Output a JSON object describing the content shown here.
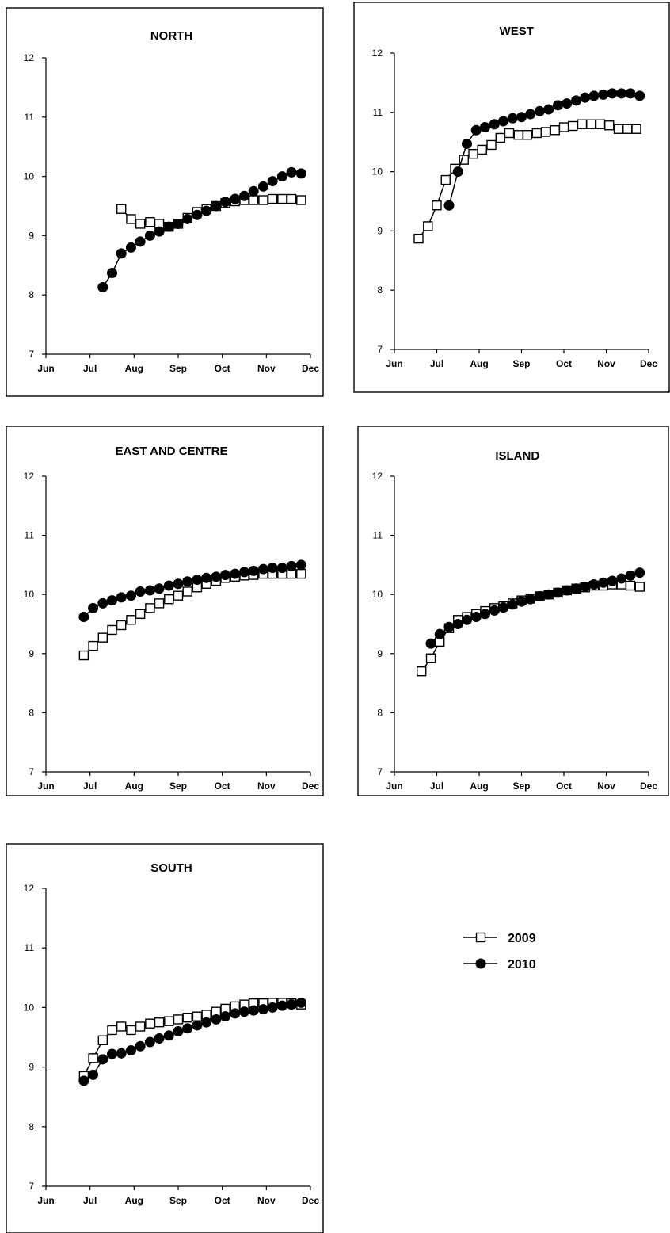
{
  "months": [
    "Jun",
    "Jul",
    "Aug",
    "Sep",
    "Oct",
    "Nov",
    "Dec"
  ],
  "legend": [
    {
      "name": "2009",
      "marker": "open-square"
    },
    {
      "name": "2010",
      "marker": "filled-circle"
    }
  ],
  "chart_data": [
    {
      "type": "line",
      "title": "NORTH",
      "xlabel": "",
      "ylabel": "",
      "xlim": [
        0,
        6
      ],
      "ylim": [
        7,
        12
      ],
      "yticks": [
        7,
        8,
        9,
        10,
        11,
        12
      ],
      "xticks": [
        "Jun",
        "Jul",
        "Aug",
        "Sep",
        "Oct",
        "Nov",
        "Dec"
      ],
      "series": [
        {
          "name": "2009",
          "marker": "open-square",
          "x": [
            1.71,
            1.93,
            2.14,
            2.36,
            2.57,
            2.79,
            3.0,
            3.21,
            3.43,
            3.64,
            3.86,
            4.07,
            4.29,
            4.5,
            4.71,
            4.93,
            5.14,
            5.36,
            5.57,
            5.79
          ],
          "y": [
            9.45,
            9.28,
            9.2,
            9.23,
            9.2,
            9.15,
            9.2,
            9.3,
            9.4,
            9.45,
            9.5,
            9.55,
            9.58,
            9.6,
            9.6,
            9.6,
            9.62,
            9.62,
            9.62,
            9.6
          ]
        },
        {
          "name": "2010",
          "marker": "filled-circle",
          "x": [
            1.29,
            1.5,
            1.71,
            1.93,
            2.14,
            2.36,
            2.57,
            2.79,
            3.0,
            3.21,
            3.43,
            3.64,
            3.86,
            4.07,
            4.29,
            4.5,
            4.71,
            4.93,
            5.14,
            5.36,
            5.57,
            5.79
          ],
          "y": [
            8.13,
            8.37,
            8.7,
            8.8,
            8.9,
            9.0,
            9.07,
            9.15,
            9.2,
            9.28,
            9.35,
            9.42,
            9.5,
            9.57,
            9.62,
            9.67,
            9.75,
            9.83,
            9.92,
            10.0,
            10.07,
            10.05
          ]
        }
      ]
    },
    {
      "type": "line",
      "title": "WEST",
      "xlabel": "",
      "ylabel": "",
      "xlim": [
        0,
        6
      ],
      "ylim": [
        7,
        12
      ],
      "yticks": [
        7,
        8,
        9,
        10,
        11,
        12
      ],
      "xticks": [
        "Jun",
        "Jul",
        "Aug",
        "Sep",
        "Oct",
        "Nov",
        "Dec"
      ],
      "series": [
        {
          "name": "2009",
          "marker": "open-square",
          "x": [
            0.57,
            0.79,
            1.0,
            1.21,
            1.43,
            1.64,
            1.86,
            2.07,
            2.29,
            2.5,
            2.71,
            2.93,
            3.14,
            3.36,
            3.57,
            3.79,
            4.0,
            4.21,
            4.43,
            4.64,
            4.86,
            5.07,
            5.29,
            5.5,
            5.71
          ],
          "y": [
            8.87,
            9.08,
            9.43,
            9.86,
            10.05,
            10.2,
            10.3,
            10.37,
            10.45,
            10.57,
            10.65,
            10.62,
            10.62,
            10.65,
            10.67,
            10.7,
            10.75,
            10.77,
            10.8,
            10.8,
            10.8,
            10.78,
            10.72,
            10.72,
            10.72
          ]
        },
        {
          "name": "2010",
          "marker": "filled-circle",
          "x": [
            1.29,
            1.5,
            1.71,
            1.93,
            2.14,
            2.36,
            2.57,
            2.79,
            3.0,
            3.21,
            3.43,
            3.64,
            3.86,
            4.07,
            4.29,
            4.5,
            4.71,
            4.93,
            5.14,
            5.36,
            5.57,
            5.79
          ],
          "y": [
            9.43,
            10.0,
            10.47,
            10.7,
            10.75,
            10.8,
            10.85,
            10.9,
            10.92,
            10.97,
            11.02,
            11.05,
            11.12,
            11.15,
            11.2,
            11.25,
            11.28,
            11.3,
            11.32,
            11.32,
            11.32,
            11.28
          ]
        }
      ]
    },
    {
      "type": "line",
      "title": "EAST AND CENTRE",
      "xlabel": "",
      "ylabel": "",
      "xlim": [
        0,
        6
      ],
      "ylim": [
        7,
        12
      ],
      "yticks": [
        7,
        8,
        9,
        10,
        11,
        12
      ],
      "xticks": [
        "Jun",
        "Jul",
        "Aug",
        "Sep",
        "Oct",
        "Nov",
        "Dec"
      ],
      "series": [
        {
          "name": "2009",
          "marker": "open-square",
          "x": [
            0.86,
            1.07,
            1.29,
            1.5,
            1.71,
            1.93,
            2.14,
            2.36,
            2.57,
            2.79,
            3.0,
            3.21,
            3.43,
            3.64,
            3.86,
            4.07,
            4.29,
            4.5,
            4.71,
            4.93,
            5.14,
            5.36,
            5.57,
            5.79
          ],
          "y": [
            8.97,
            9.13,
            9.27,
            9.4,
            9.48,
            9.57,
            9.67,
            9.77,
            9.85,
            9.92,
            9.98,
            10.05,
            10.12,
            10.18,
            10.23,
            10.28,
            10.3,
            10.32,
            10.33,
            10.35,
            10.35,
            10.35,
            10.35,
            10.35
          ]
        },
        {
          "name": "2010",
          "marker": "filled-circle",
          "x": [
            0.86,
            1.07,
            1.29,
            1.5,
            1.71,
            1.93,
            2.14,
            2.36,
            2.57,
            2.79,
            3.0,
            3.21,
            3.43,
            3.64,
            3.86,
            4.07,
            4.29,
            4.5,
            4.71,
            4.93,
            5.14,
            5.36,
            5.57,
            5.79
          ],
          "y": [
            9.62,
            9.77,
            9.85,
            9.9,
            9.95,
            9.98,
            10.05,
            10.07,
            10.1,
            10.15,
            10.18,
            10.22,
            10.25,
            10.28,
            10.3,
            10.33,
            10.35,
            10.38,
            10.4,
            10.43,
            10.45,
            10.45,
            10.48,
            10.5
          ]
        }
      ]
    },
    {
      "type": "line",
      "title": "ISLAND",
      "xlabel": "",
      "ylabel": "",
      "xlim": [
        0,
        6
      ],
      "ylim": [
        7,
        12
      ],
      "yticks": [
        7,
        8,
        9,
        10,
        11,
        12
      ],
      "xticks": [
        "Jun",
        "Jul",
        "Aug",
        "Sep",
        "Oct",
        "Nov",
        "Dec"
      ],
      "series": [
        {
          "name": "2009",
          "marker": "open-square",
          "x": [
            0.64,
            0.86,
            1.07,
            1.29,
            1.5,
            1.71,
            1.93,
            2.14,
            2.36,
            2.57,
            2.79,
            3.0,
            3.21,
            3.43,
            3.64,
            3.86,
            4.07,
            4.29,
            4.5,
            4.71,
            4.93,
            5.14,
            5.36,
            5.57,
            5.79
          ],
          "y": [
            8.7,
            8.92,
            9.2,
            9.43,
            9.57,
            9.62,
            9.67,
            9.72,
            9.77,
            9.8,
            9.85,
            9.9,
            9.93,
            9.97,
            10.0,
            10.03,
            10.07,
            10.1,
            10.12,
            10.15,
            10.15,
            10.17,
            10.17,
            10.15,
            10.13
          ]
        },
        {
          "name": "2010",
          "marker": "filled-circle",
          "x": [
            0.86,
            1.07,
            1.29,
            1.5,
            1.71,
            1.93,
            2.14,
            2.36,
            2.57,
            2.79,
            3.0,
            3.21,
            3.43,
            3.64,
            3.86,
            4.07,
            4.29,
            4.5,
            4.71,
            4.93,
            5.14,
            5.36,
            5.57,
            5.79
          ],
          "y": [
            9.17,
            9.33,
            9.45,
            9.5,
            9.57,
            9.62,
            9.67,
            9.73,
            9.78,
            9.83,
            9.88,
            9.92,
            9.97,
            10.0,
            10.03,
            10.07,
            10.1,
            10.13,
            10.17,
            10.2,
            10.23,
            10.27,
            10.32,
            10.37
          ]
        }
      ]
    },
    {
      "type": "line",
      "title": "SOUTH",
      "xlabel": "",
      "ylabel": "",
      "xlim": [
        0,
        6
      ],
      "ylim": [
        7,
        12
      ],
      "yticks": [
        7,
        8,
        9,
        10,
        11,
        12
      ],
      "xticks": [
        "Jun",
        "Jul",
        "Aug",
        "Sep",
        "Oct",
        "Nov",
        "Dec"
      ],
      "series": [
        {
          "name": "2009",
          "marker": "open-square",
          "x": [
            0.86,
            1.07,
            1.29,
            1.5,
            1.71,
            1.93,
            2.14,
            2.36,
            2.57,
            2.79,
            3.0,
            3.21,
            3.43,
            3.64,
            3.86,
            4.07,
            4.29,
            4.5,
            4.71,
            4.93,
            5.14,
            5.36,
            5.57,
            5.79
          ],
          "y": [
            8.85,
            9.15,
            9.45,
            9.62,
            9.68,
            9.62,
            9.68,
            9.73,
            9.75,
            9.77,
            9.8,
            9.83,
            9.85,
            9.88,
            9.93,
            9.98,
            10.02,
            10.05,
            10.07,
            10.07,
            10.08,
            10.08,
            10.07,
            10.05
          ]
        },
        {
          "name": "2010",
          "marker": "filled-circle",
          "x": [
            0.86,
            1.07,
            1.29,
            1.5,
            1.71,
            1.93,
            2.14,
            2.36,
            2.57,
            2.79,
            3.0,
            3.21,
            3.43,
            3.64,
            3.86,
            4.07,
            4.29,
            4.5,
            4.71,
            4.93,
            5.14,
            5.36,
            5.57,
            5.79
          ],
          "y": [
            8.77,
            8.87,
            9.13,
            9.22,
            9.23,
            9.28,
            9.35,
            9.42,
            9.48,
            9.53,
            9.6,
            9.65,
            9.7,
            9.75,
            9.8,
            9.85,
            9.9,
            9.93,
            9.95,
            9.97,
            10.0,
            10.03,
            10.05,
            10.08
          ]
        }
      ]
    }
  ]
}
